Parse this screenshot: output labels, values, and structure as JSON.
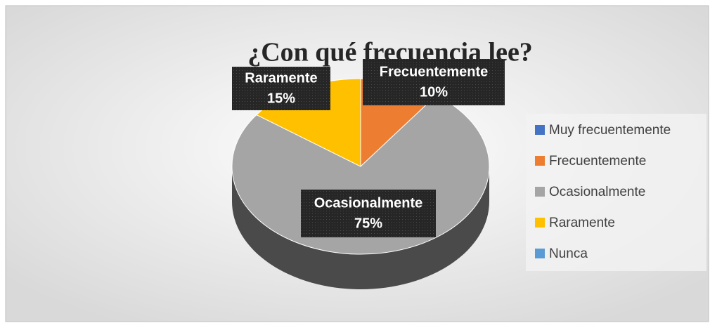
{
  "chart_data": {
    "type": "pie",
    "title": "¿Con qué frecuencia lee?",
    "categories": [
      "Muy frecuentemente",
      "Frecuentemente",
      "Ocasionalmente",
      "Raramente",
      "Nunca"
    ],
    "values": [
      0,
      10,
      75,
      15,
      0
    ],
    "value_labels": [
      null,
      "10%",
      "75%",
      "15%",
      null
    ],
    "colors": [
      "#4472c4",
      "#ed7d31",
      "#a5a5a5",
      "#ffc000",
      "#5b9bd5"
    ],
    "legend": "right"
  }
}
